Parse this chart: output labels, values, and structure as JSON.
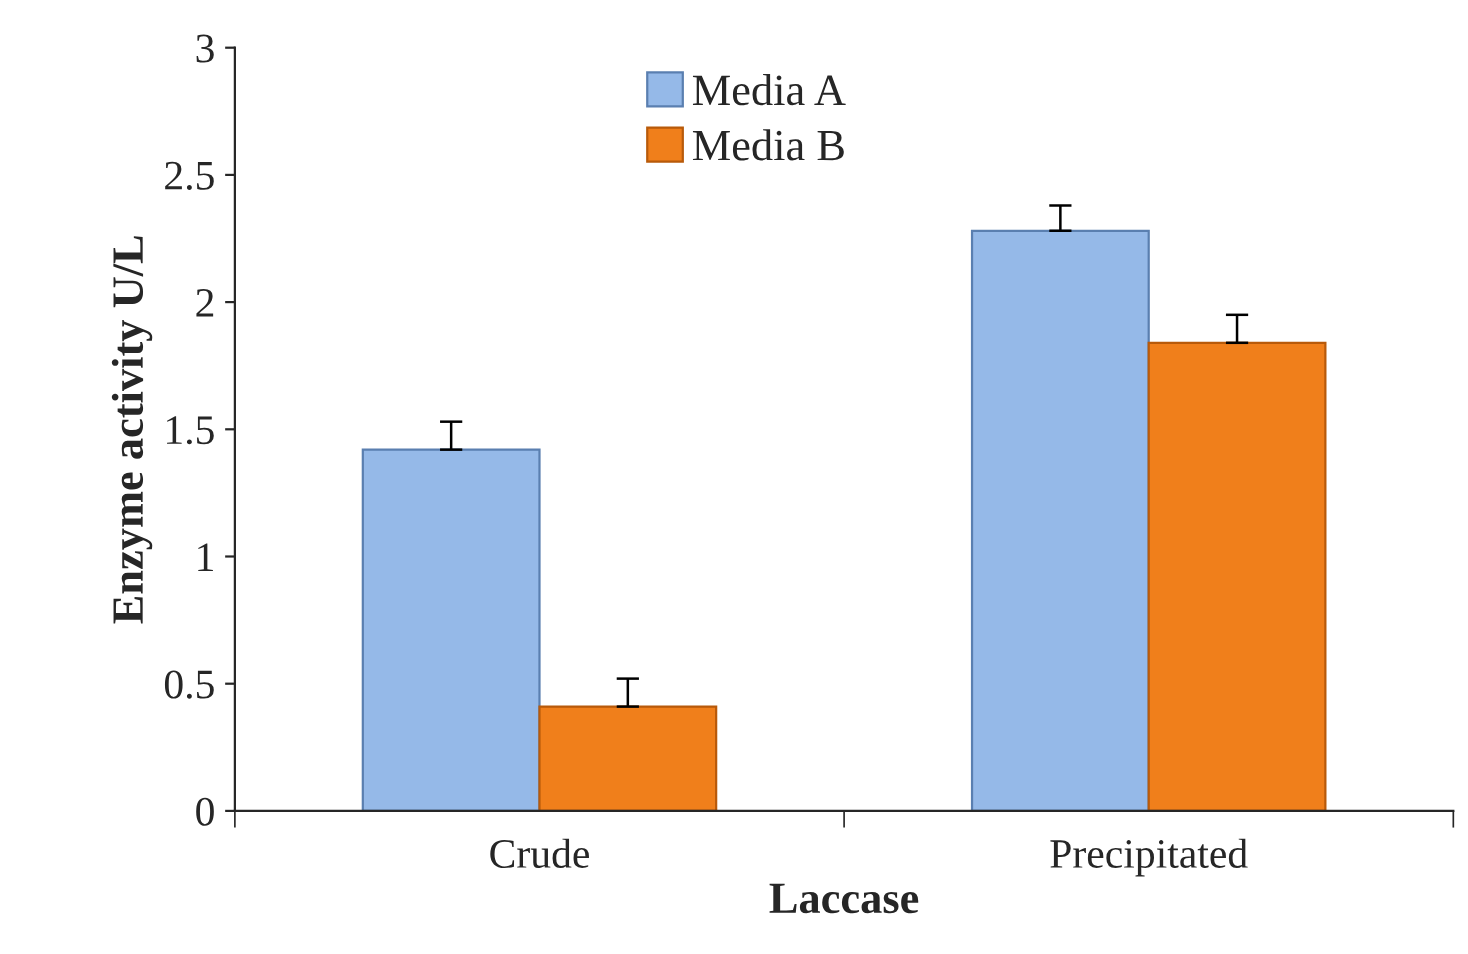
{
  "chart_data": {
    "type": "bar",
    "xlabel": "Laccase",
    "ylabel": "Enzyme activity U/L",
    "categories": [
      "Crude",
      "Precipitated"
    ],
    "series": [
      {
        "name": "Media A",
        "color": "#95b9e8",
        "values": [
          1.42,
          2.28
        ],
        "errors": [
          [
            1.42,
            1.53
          ],
          [
            2.28,
            2.38
          ]
        ]
      },
      {
        "name": "Media B",
        "color": "#f07f1b",
        "values": [
          0.41,
          1.84
        ],
        "errors": [
          [
            0.41,
            0.52
          ],
          [
            1.84,
            1.95
          ]
        ]
      }
    ],
    "ylim": [
      0,
      3
    ],
    "yticks": [
      0,
      0.5,
      1,
      1.5,
      2,
      2.5,
      3
    ],
    "grid": false,
    "legend": "top"
  }
}
